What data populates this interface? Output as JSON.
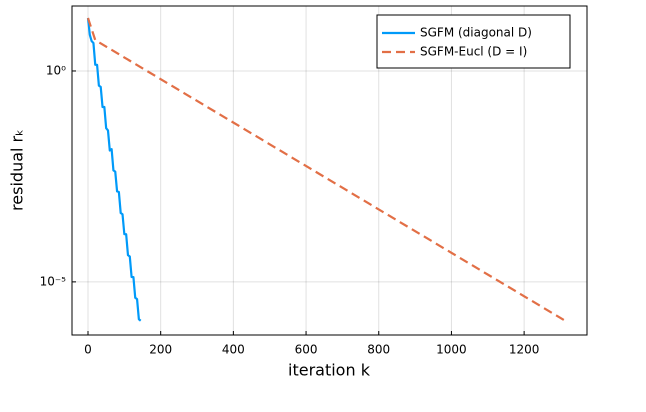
{
  "chart_data": {
    "type": "line",
    "xlabel": "iteration k",
    "ylabel": "residual rₖ",
    "xlim": [
      -44,
      1373
    ],
    "xticks": [
      0,
      200,
      400,
      600,
      800,
      1000,
      1200
    ],
    "ylim": [
      5.5e-07,
      34.7
    ],
    "yscale": "log",
    "yticks": [
      {
        "value": 1,
        "label": "10⁰"
      },
      {
        "value": 1e-05,
        "label": "10⁻⁵"
      }
    ],
    "grid": true,
    "legend": "top-right",
    "series": [
      {
        "name": "SGFM (diagonal D)",
        "color": "#009af9",
        "dash": false,
        "x": [
          0,
          5,
          10,
          15,
          20,
          25,
          30,
          35,
          40,
          45,
          50,
          55,
          60,
          65,
          70,
          75,
          80,
          85,
          90,
          95,
          100,
          105,
          110,
          115,
          120,
          125,
          130,
          135,
          140,
          145
        ],
        "values": [
          18,
          7.2,
          5.1,
          4.6,
          1.4,
          1.4,
          0.45,
          0.42,
          0.14,
          0.14,
          0.044,
          0.039,
          0.013,
          0.014,
          0.0044,
          0.0041,
          0.0014,
          0.00135,
          0.00043,
          0.0004,
          0.000135,
          0.000135,
          4.3e-05,
          4e-05,
          1.3e-05,
          1.3e-05,
          4.2e-06,
          3.9e-06,
          1.3e-06,
          1.2e-06
        ]
      },
      {
        "name": "SGFM-Eucl (D = I)",
        "color": "#e26f46",
        "dash": true,
        "x": [
          0,
          20,
          1320
        ],
        "values": [
          18,
          5.4,
          1.1e-06
        ]
      }
    ]
  }
}
